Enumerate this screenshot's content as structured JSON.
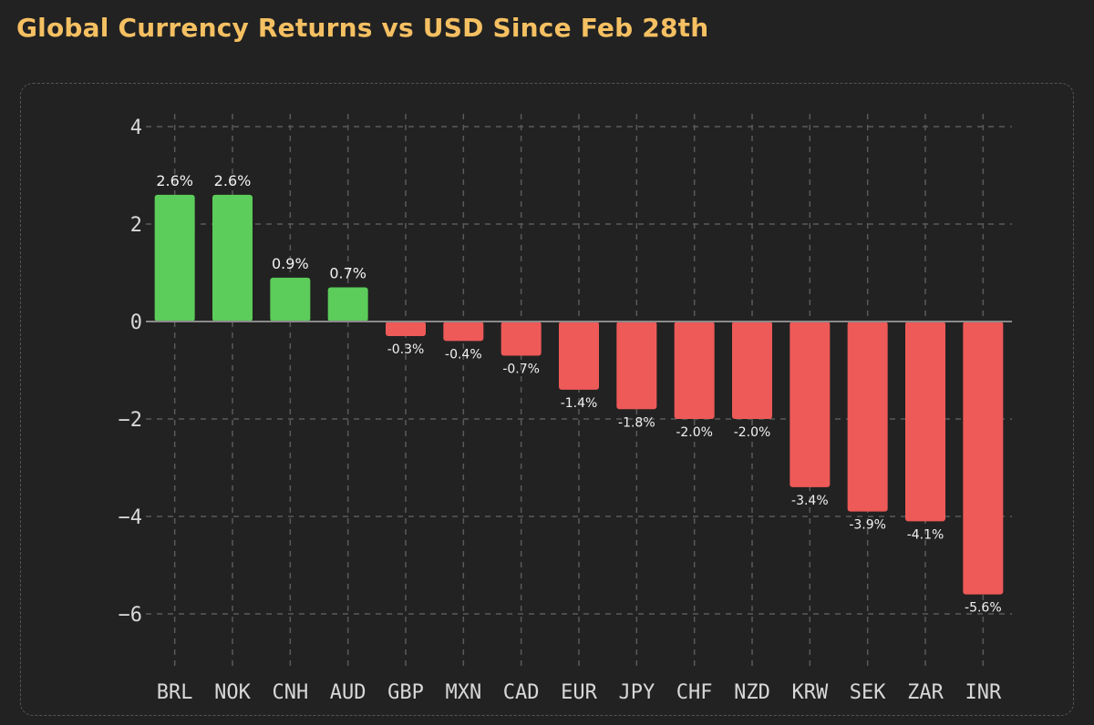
{
  "header": {
    "title": "Global Currency Returns vs USD Since Feb 28th"
  },
  "colors": {
    "background": "#222222",
    "title": "#f5c062",
    "positive": "#5ccc5a",
    "negative": "#ee5a58",
    "grid": "#5a5a5a",
    "zero_line": "#8a8a8a"
  },
  "chart_data": {
    "type": "bar",
    "title": "Global Currency Returns vs USD Since Feb 28th",
    "xlabel": "",
    "ylabel": "",
    "ylim": [
      -7.2,
      4.3
    ],
    "yticks": [
      4,
      2,
      0,
      -2,
      -4,
      -6
    ],
    "ytick_labels": [
      "4",
      "2",
      "0",
      "−2",
      "−4",
      "−6"
    ],
    "grid": true,
    "categories": [
      "BRL",
      "NOK",
      "CNH",
      "AUD",
      "GBP",
      "MXN",
      "CAD",
      "EUR",
      "JPY",
      "CHF",
      "NZD",
      "KRW",
      "SEK",
      "ZAR",
      "INR"
    ],
    "values": [
      2.6,
      2.6,
      0.9,
      0.7,
      -0.3,
      -0.4,
      -0.7,
      -1.4,
      -1.8,
      -2.0,
      -2.0,
      -3.4,
      -3.9,
      -4.1,
      -5.6
    ],
    "data_labels": [
      "2.6%",
      "2.6%",
      "0.9%",
      "0.7%",
      "-0.3%",
      "-0.4%",
      "-0.7%",
      "-1.4%",
      "-1.8%",
      "-2.0%",
      "-2.0%",
      "-3.4%",
      "-3.9%",
      "-4.1%",
      "-5.6%"
    ]
  }
}
